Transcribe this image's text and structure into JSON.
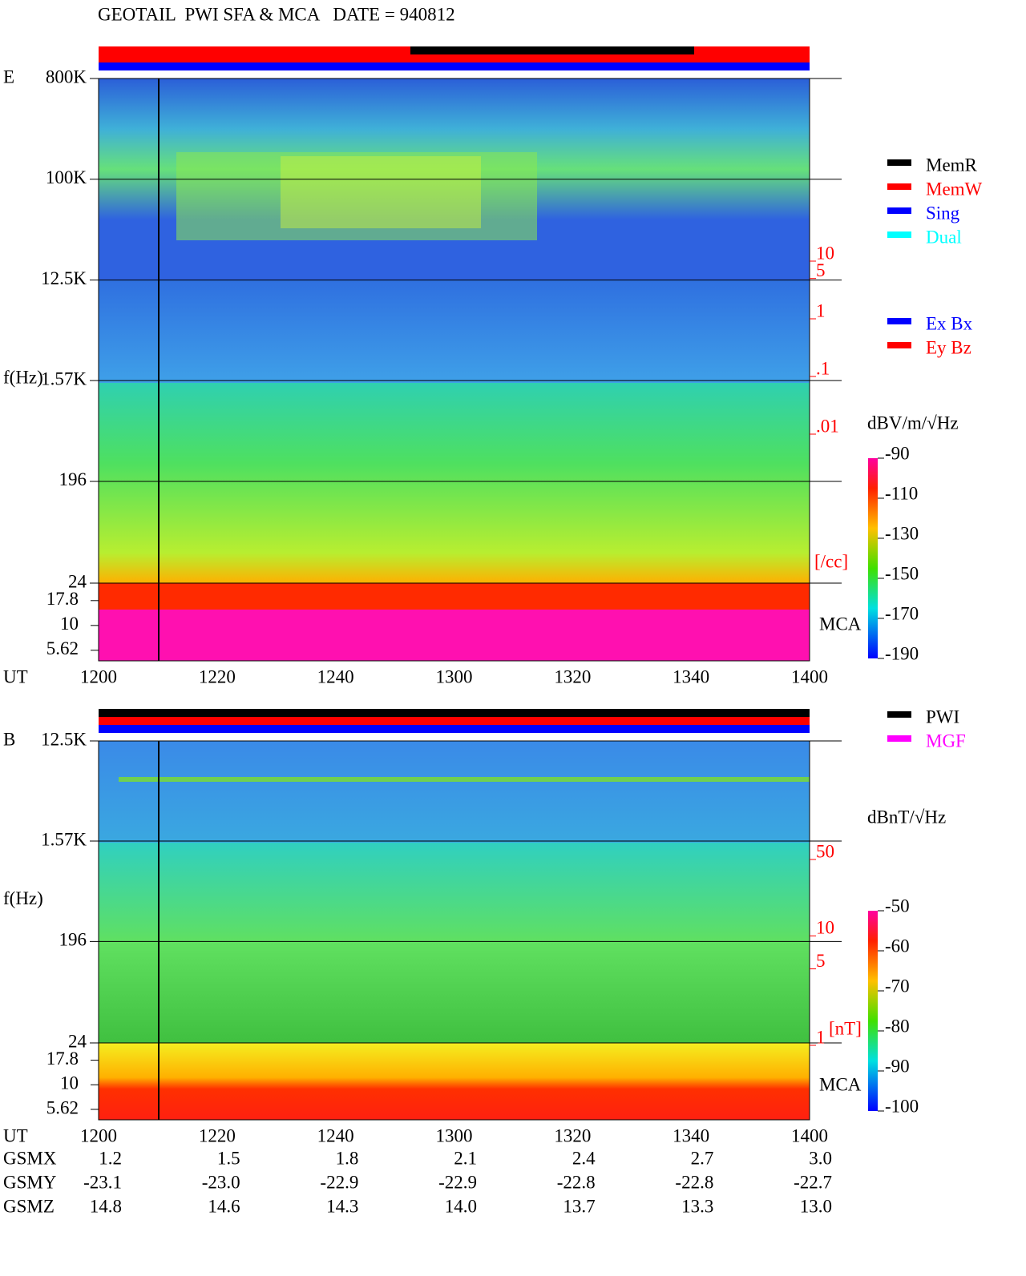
{
  "title": "GEOTAIL  PWI SFA & MCA   DATE = 940812",
  "panels": [
    {
      "label": "E",
      "ylabel": "f(Hz)",
      "xlabel": "UT",
      "log": true,
      "ylim": [
        24,
        800000
      ],
      "yticks": [
        {
          "value": 800000,
          "label": "800K"
        },
        {
          "value": 100000,
          "label": "100K"
        },
        {
          "value": 12500,
          "label": "12.5K"
        },
        {
          "value": 1570,
          "label": "1.57K"
        },
        196,
        24
      ],
      "mca_label": "MCA",
      "mca_ylim": [
        4.4,
        26.7
      ],
      "mca_yticks": [
        17.8,
        10,
        5.62
      ],
      "xticks": [
        "1200",
        "1220",
        "1240",
        "1300",
        "1320",
        "1340",
        "1400"
      ],
      "legend": [
        {
          "name": "MemR",
          "color": "#000000"
        },
        {
          "name": "MemW",
          "color": "#ff0000"
        },
        {
          "name": "Sing",
          "color": "#0000ff"
        },
        {
          "name": "Dual",
          "color": "#00ffff"
        }
      ],
      "legend2": [
        {
          "name": "Ex Bx",
          "color": "#0000ff"
        },
        {
          "name": "Ey Bz",
          "color": "#ff0000"
        }
      ],
      "unit": "dBV/m/√Hz",
      "clim": [
        -90,
        -190
      ],
      "cticks": [
        -90,
        -110,
        -130,
        -150,
        -170,
        -190
      ],
      "density_ylim": [
        10,
        0.01
      ],
      "density_ticks": [
        10,
        5,
        1,
        {
          "value": 0.1,
          "label": ".1"
        },
        {
          "value": 0.01,
          "label": ".01"
        }
      ],
      "density_unit": "[/cc]"
    },
    {
      "label": "B",
      "ylabel": "f(Hz)",
      "xlabel": "UT",
      "log": true,
      "ylim": [
        24,
        12500
      ],
      "yticks": [
        {
          "value": 12500,
          "label": "12.5K"
        },
        {
          "value": 1570,
          "label": "1.57K"
        },
        196,
        24
      ],
      "mca_label": "MCA",
      "mca_ylim": [
        4.4,
        26.7
      ],
      "mca_yticks": [
        17.8,
        10,
        5.62
      ],
      "xticks": [
        "1200",
        "1220",
        "1240",
        "1300",
        "1320",
        "1340",
        "1400"
      ],
      "legend": [
        {
          "name": "PWI",
          "color": "#000000"
        },
        {
          "name": "MGF",
          "color": "#ff00ff"
        }
      ],
      "unit": "dBnT/√Hz",
      "clim": [
        -50,
        -100
      ],
      "cticks": [
        -50,
        -60,
        -70,
        -80,
        -90,
        -100
      ],
      "density_ylim": [
        50,
        1
      ],
      "density_ticks": [
        50,
        10,
        5,
        1
      ],
      "density_unit": "[nT]"
    }
  ],
  "orbit": {
    "rows": [
      {
        "name": "GSMX",
        "values": [
          "1.2",
          "1.5",
          "1.8",
          "2.1",
          "2.4",
          "2.7",
          "3.0"
        ]
      },
      {
        "name": "GSMY",
        "values": [
          "-23.1",
          "-23.0",
          "-22.9",
          "-22.9",
          "-22.8",
          "-22.8",
          "-22.7"
        ]
      },
      {
        "name": "GSMZ",
        "values": [
          "14.8",
          "14.6",
          "14.3",
          "14.0",
          "13.7",
          "13.3",
          "13.0"
        ]
      }
    ]
  }
}
